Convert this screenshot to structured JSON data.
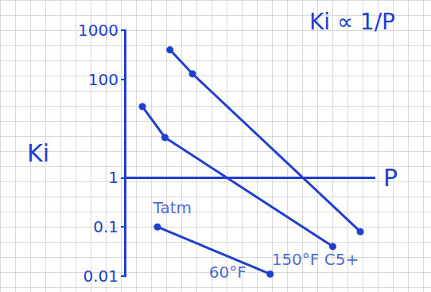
{
  "chart_data": {
    "type": "line",
    "title": "Ki ∝ 1/P",
    "x_label": "P",
    "y_label": "Ki",
    "xlim": [
      0,
      10
    ],
    "ylim": [
      0.01,
      1000
    ],
    "yticks": [
      0.01,
      0.1,
      1,
      100,
      1000
    ],
    "log": "y",
    "grid": false,
    "tick_labels": "y",
    "color": "#1f3fd0",
    "marker": "circle",
    "hlines": [
      1
    ],
    "series": [
      {
        "x": [
          1.8,
          2.7,
          9.4
        ],
        "values": [
          400,
          130,
          0.08
        ]
      },
      {
        "x": [
          0.7,
          1.6,
          8.3
        ],
        "values": [
          28,
          6.6,
          0.04
        ]
      },
      {
        "x": [
          1.3,
          5.8
        ],
        "values": [
          0.1,
          0.011
        ]
      }
    ],
    "annotations": [
      {
        "text": "Tatm",
        "x": 1.9,
        "y": 0.25
      },
      {
        "text": "60°F",
        "x": 4.1,
        "y": 0.012
      },
      {
        "text": "150°F C5+",
        "x": 7.6,
        "y": 0.022
      }
    ]
  }
}
